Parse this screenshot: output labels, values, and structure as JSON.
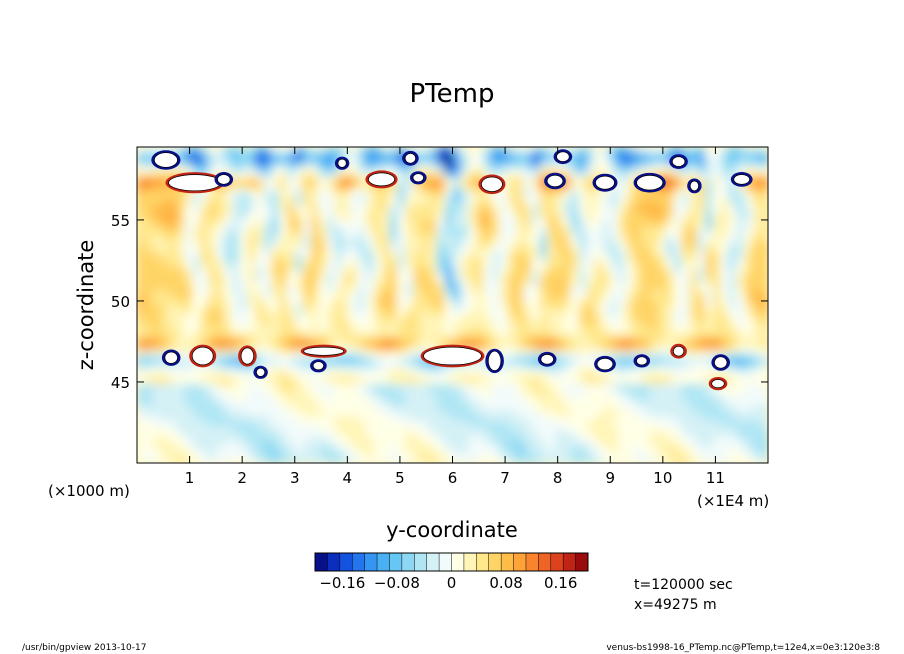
{
  "chart_data": {
    "type": "heatmap",
    "title": "PTemp",
    "xlabel": "y-coordinate",
    "ylabel": "z-coordinate",
    "x_unit_left": "(×1000 m)",
    "x_unit_right": "(×1E4 m)",
    "xlim": [
      0,
      12
    ],
    "ylim": [
      40,
      59.5
    ],
    "x_ticks": [
      {
        "v": 1,
        "label": "1"
      },
      {
        "v": 2,
        "label": "2"
      },
      {
        "v": 3,
        "label": "3"
      },
      {
        "v": 4,
        "label": "4"
      },
      {
        "v": 5,
        "label": "5"
      },
      {
        "v": 6,
        "label": "6"
      },
      {
        "v": 7,
        "label": "7"
      },
      {
        "v": 8,
        "label": "8"
      },
      {
        "v": 9,
        "label": "9"
      },
      {
        "v": 10,
        "label": "10"
      },
      {
        "v": 11,
        "label": "11"
      }
    ],
    "y_ticks": [
      {
        "v": 45,
        "label": "45"
      },
      {
        "v": 50,
        "label": "50"
      },
      {
        "v": 55,
        "label": "55"
      }
    ],
    "colorbar": {
      "range": [
        -0.2,
        0.2
      ],
      "ticks": [
        {
          "v": -0.16,
          "label": "−0.16"
        },
        {
          "v": -0.08,
          "label": "−0.08"
        },
        {
          "v": 0,
          "label": "0"
        },
        {
          "v": 0.08,
          "label": "0.08"
        },
        {
          "v": 0.16,
          "label": "0.16"
        }
      ],
      "colors": [
        "#08108a",
        "#0a2fbe",
        "#1452e0",
        "#2474ee",
        "#3496f2",
        "#4ab0f4",
        "#66c6f4",
        "#8cd8f4",
        "#b0e6f4",
        "#d4f1f6",
        "#f2fbfb",
        "#ffffe6",
        "#fff5b8",
        "#ffe78c",
        "#ffd466",
        "#ffbc48",
        "#ffa238",
        "#f8842e",
        "#ee6424",
        "#dc421c",
        "#c02414",
        "#9a0c0c"
      ]
    },
    "annotations": [
      "t=120000 sec",
      "x=49275 m"
    ]
  },
  "footer": {
    "left": "/usr/bin/gpview  2013-10-17",
    "right": "venus-bs1998-16_PTemp.nc@PTemp,t=12e4,x=0e3:120e3:8"
  }
}
